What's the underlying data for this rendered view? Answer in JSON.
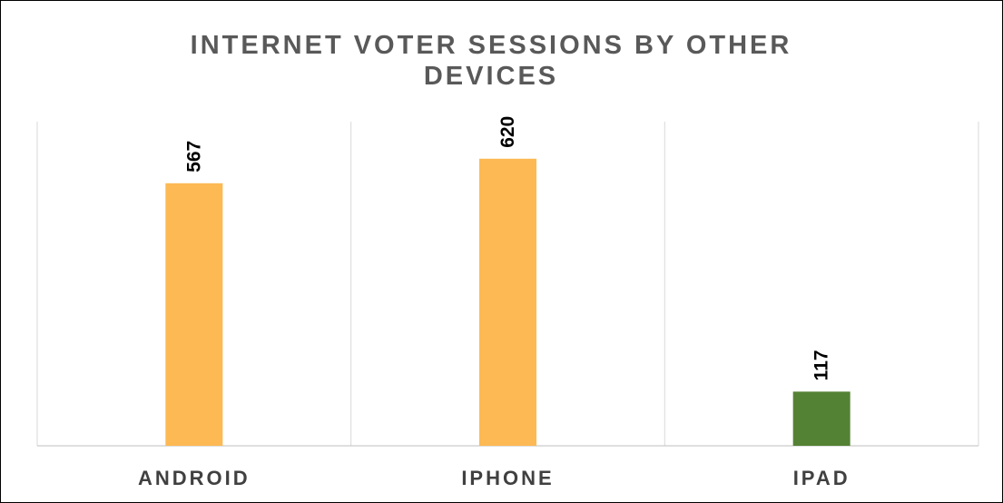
{
  "chart_data": {
    "type": "bar",
    "title": "INTERNET VOTER SESSIONS BY OTHER DEVICES",
    "categories": [
      "ANDROID",
      "IPHONE",
      "IPAD"
    ],
    "values": [
      567,
      620,
      117
    ],
    "data_labels": [
      "567",
      "620",
      "117"
    ],
    "colors": [
      "#FDB954",
      "#FDB954",
      "#548235"
    ],
    "ylim": [
      0,
      700
    ],
    "grid": "vertical-category-dividers",
    "legend": "none"
  }
}
